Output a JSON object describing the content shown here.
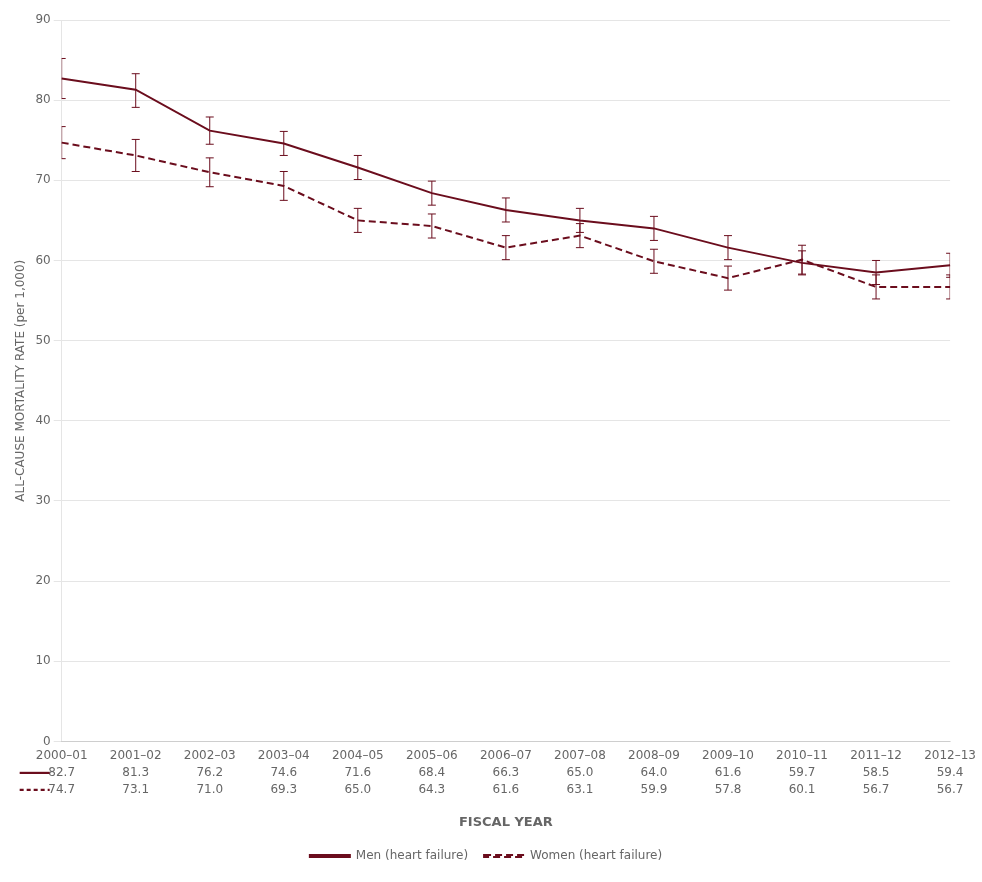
{
  "chart_data": {
    "type": "line",
    "categories": [
      "2000–01",
      "2001–02",
      "2002–03",
      "2003–04",
      "2004–05",
      "2005–06",
      "2006–07",
      "2007–08",
      "2008–09",
      "2009–10",
      "2010–11",
      "2011–12",
      "2012–13"
    ],
    "series": [
      {
        "name": "Men (heart failure)",
        "color": "#6B0D1D",
        "line_style": "solid",
        "values": [
          82.7,
          81.3,
          76.2,
          74.6,
          71.6,
          68.4,
          66.3,
          65.0,
          64.0,
          61.6,
          59.7,
          58.5,
          59.4
        ],
        "value_labels": [
          "82.7",
          "81.3",
          "76.2",
          "74.6",
          "71.6",
          "68.4",
          "66.3",
          "65.0",
          "64.0",
          "61.6",
          "59.7",
          "58.5",
          "59.4"
        ],
        "error_low": [
          2.5,
          2.2,
          1.7,
          1.5,
          1.5,
          1.5,
          1.5,
          1.5,
          1.5,
          1.5,
          1.5,
          1.5,
          1.5
        ],
        "error_high": [
          2.5,
          2.0,
          1.7,
          1.5,
          1.5,
          1.5,
          1.5,
          1.5,
          1.5,
          1.5,
          1.5,
          1.5,
          1.5
        ]
      },
      {
        "name": "Women (heart failure)",
        "color": "#6B0D1D",
        "line_style": "dashed",
        "values": [
          74.7,
          73.1,
          71.0,
          69.3,
          65.0,
          64.3,
          61.6,
          63.1,
          59.9,
          57.8,
          60.1,
          56.7,
          56.7
        ],
        "value_labels": [
          "74.7",
          "73.1",
          "71.0",
          "69.3",
          "65.0",
          "64.3",
          "61.6",
          "63.1",
          "59.9",
          "57.8",
          "60.1",
          "56.7",
          "56.7"
        ],
        "error_low": [
          2.0,
          2.0,
          1.8,
          1.8,
          1.5,
          1.5,
          1.5,
          1.5,
          1.5,
          1.5,
          1.8,
          1.5,
          1.5
        ],
        "error_high": [
          2.0,
          2.0,
          1.8,
          1.8,
          1.5,
          1.5,
          1.5,
          1.5,
          1.5,
          1.5,
          1.8,
          1.5,
          1.5
        ]
      }
    ],
    "xlabel": "FISCAL YEAR",
    "ylabel": "ALL-CAUSE MORTALITY RATE (per 1,000)",
    "ylim": [
      0,
      90
    ],
    "yticks": [
      0,
      10,
      20,
      30,
      40,
      50,
      60,
      70,
      80,
      90
    ],
    "grid": true,
    "legend": "bottom"
  }
}
